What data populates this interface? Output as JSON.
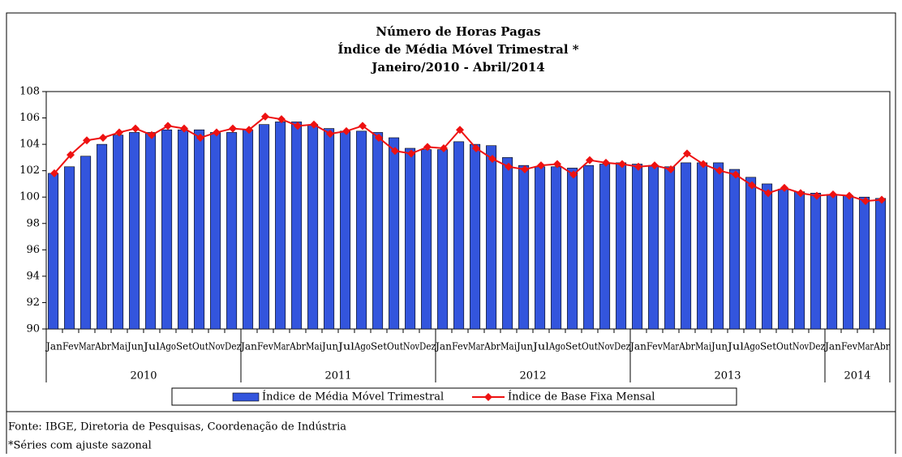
{
  "chart_data": {
    "type": "bar-line",
    "title": [
      "Número de Horas Pagas",
      "Índice de Média Móvel Trimestral *",
      "Janeiro/2010 - Abril/2014"
    ],
    "categories": [
      "Jan",
      "Fev",
      "Mar",
      "Abr",
      "Mai",
      "Jun",
      "Jul",
      "Ago",
      "Set",
      "Out",
      "Nov",
      "Dez",
      "Jan",
      "Fev",
      "Mar",
      "Abr",
      "Mai",
      "Jun",
      "Jul",
      "Ago",
      "Set",
      "Out",
      "Nov",
      "Dez",
      "Jan",
      "Fev",
      "Mar",
      "Abr",
      "Mai",
      "Jun",
      "Jul",
      "Ago",
      "Set",
      "Out",
      "Nov",
      "Dez",
      "Jan",
      "Fev",
      "Mar",
      "Abr",
      "Mai",
      "Jun",
      "Jul",
      "Ago",
      "Set",
      "Out",
      "Nov",
      "Dez",
      "Jan",
      "Fev",
      "Mar",
      "Abr"
    ],
    "years": [
      "2010",
      "2011",
      "2012",
      "2013",
      "2014"
    ],
    "series": [
      {
        "name": "Índice de Média Móvel Trimestral",
        "kind": "bar",
        "color": "#3355dd",
        "values": [
          101.8,
          102.3,
          103.1,
          104.0,
          104.7,
          104.9,
          104.9,
          105.1,
          105.1,
          105.1,
          104.9,
          104.9,
          105.1,
          105.5,
          105.7,
          105.7,
          105.5,
          105.2,
          105.0,
          105.0,
          104.9,
          104.5,
          103.7,
          103.6,
          103.6,
          104.2,
          104.0,
          103.9,
          103.0,
          102.4,
          102.3,
          102.3,
          102.2,
          102.4,
          102.5,
          102.6,
          102.5,
          102.4,
          102.3,
          102.6,
          102.6,
          102.6,
          102.1,
          101.5,
          101.0,
          100.6,
          100.4,
          100.3,
          100.2,
          100.1,
          100.0,
          99.9
        ]
      },
      {
        "name": "Índice de Base Fixa Mensal",
        "kind": "line",
        "color": "#ee1111",
        "values": [
          101.8,
          103.2,
          104.3,
          104.5,
          104.9,
          105.2,
          104.7,
          105.4,
          105.2,
          104.5,
          104.9,
          105.2,
          105.1,
          106.1,
          105.9,
          105.4,
          105.5,
          104.8,
          105.0,
          105.4,
          104.5,
          103.5,
          103.3,
          103.8,
          103.7,
          105.1,
          103.7,
          102.9,
          102.3,
          102.1,
          102.4,
          102.5,
          101.7,
          102.8,
          102.6,
          102.5,
          102.3,
          102.4,
          102.1,
          103.3,
          102.5,
          102.0,
          101.7,
          100.9,
          100.3,
          100.7,
          100.3,
          100.1,
          100.2,
          100.1,
          99.7,
          99.8
        ]
      }
    ],
    "ylim": [
      90,
      108
    ],
    "yticks": [
      90,
      92,
      94,
      96,
      98,
      100,
      102,
      104,
      106,
      108
    ],
    "notes": [
      "Fonte: IBGE, Diretoria de Pesquisas, Coordenação de Indústria",
      "*Séries com ajuste sazonal"
    ]
  }
}
